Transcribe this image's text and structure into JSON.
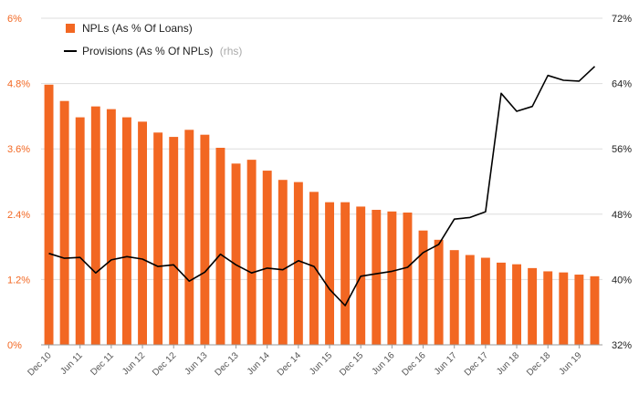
{
  "colors": {
    "bar": "#f26722",
    "line": "#000000",
    "grid": "#dddddd",
    "left_axis_text": "#f26722",
    "right_axis_text": "#222222"
  },
  "chart_data": {
    "type": "bar+line",
    "title": "",
    "categories": [
      "Dec 10",
      "Mar 11",
      "Jun 11",
      "Sep 11",
      "Dec 11",
      "Mar 12",
      "Jun 12",
      "Sep 12",
      "Dec 12",
      "Mar 13",
      "Jun 13",
      "Sep 13",
      "Dec 13",
      "Mar 14",
      "Jun 14",
      "Sep 14",
      "Dec 14",
      "Mar 15",
      "Jun 15",
      "Sep 15",
      "Dec 15",
      "Mar 16",
      "Jun 16",
      "Sep 16",
      "Dec 16",
      "Mar 17",
      "Jun 17",
      "Sep 17",
      "Dec 17",
      "Mar 18",
      "Jun 18",
      "Sep 18",
      "Dec 18",
      "Mar 19",
      "Jun 19",
      "Sep 19"
    ],
    "x_tick_labels": [
      "Dec 10",
      "Jun 11",
      "Dec 11",
      "Jun 12",
      "Dec 12",
      "Jun 13",
      "Dec 13",
      "Jun 14",
      "Dec 14",
      "Jun 15",
      "Dec 15",
      "Jun 16",
      "Dec 16",
      "Jun 17",
      "Dec 17",
      "Jun 18",
      "Dec 18",
      "Jun 19"
    ],
    "series": [
      {
        "name": "NPLs (As % Of Loans)",
        "axis": "left",
        "type": "bar",
        "values": [
          4.78,
          4.48,
          4.18,
          4.38,
          4.33,
          4.18,
          4.1,
          3.9,
          3.82,
          3.95,
          3.86,
          3.62,
          3.33,
          3.4,
          3.2,
          3.03,
          2.99,
          2.81,
          2.62,
          2.62,
          2.54,
          2.48,
          2.45,
          2.43,
          2.1,
          1.93,
          1.74,
          1.65,
          1.6,
          1.51,
          1.48,
          1.41,
          1.35,
          1.33,
          1.29,
          1.26
        ]
      },
      {
        "name": "Provisions (As % Of NPLs)",
        "axis": "right",
        "type": "line",
        "values": [
          43.2,
          42.6,
          42.7,
          40.8,
          42.4,
          42.8,
          42.5,
          41.6,
          41.8,
          39.8,
          40.9,
          43.1,
          41.8,
          40.8,
          41.4,
          41.2,
          42.3,
          41.6,
          38.8,
          36.8,
          40.4,
          40.7,
          41.0,
          41.5,
          43.3,
          44.3,
          47.4,
          47.6,
          48.3,
          62.8,
          60.6,
          61.2,
          65.0,
          64.4,
          64.3,
          66.1
        ]
      }
    ],
    "legend": [
      {
        "label": "NPLs (As % Of Loans)",
        "note": ""
      },
      {
        "label": "Provisions (As % Of NPLs)",
        "note": "(rhs)"
      }
    ],
    "y_left": {
      "ylim": [
        0,
        6
      ],
      "ticks": [
        "0%",
        "1.2%",
        "2.4%",
        "3.6%",
        "4.8%",
        "6%"
      ]
    },
    "y_right": {
      "ylim": [
        32,
        72
      ],
      "ticks": [
        "32%",
        "40%",
        "48%",
        "56%",
        "64%",
        "72%"
      ]
    },
    "grid": true,
    "legend_position": "top-left"
  }
}
